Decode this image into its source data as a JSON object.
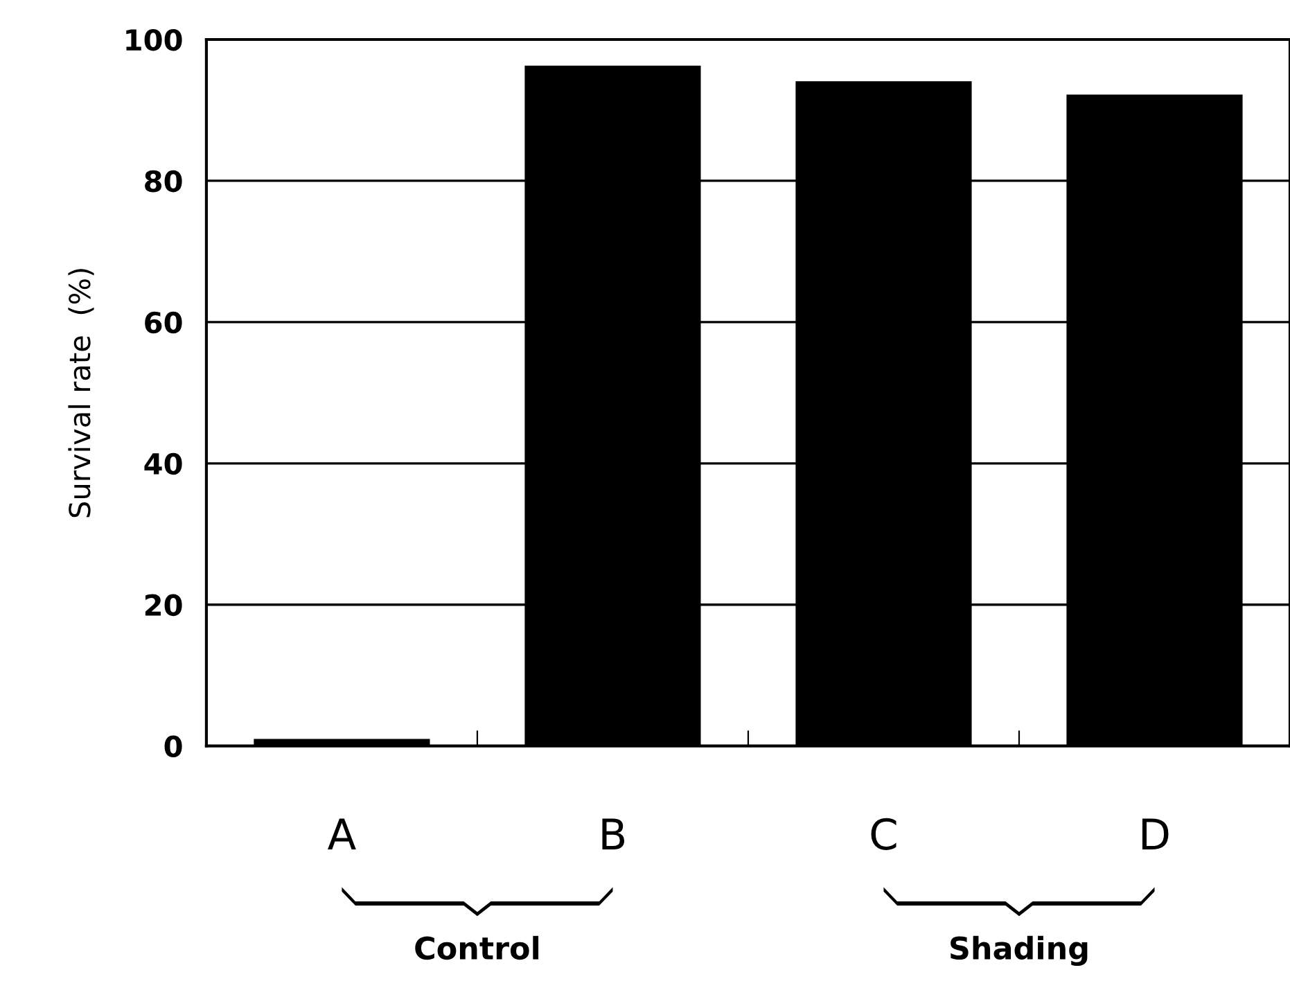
{
  "chart_data": {
    "type": "bar",
    "ylabel": "Survival rate  (%)",
    "categories": [
      "A",
      "B",
      "C",
      "D"
    ],
    "values": [
      1,
      96.3,
      94.1,
      92.2
    ],
    "color": "#000000",
    "ylim": [
      0,
      100
    ],
    "yticks": [
      0,
      20,
      40,
      60,
      80,
      100
    ],
    "grid": "y",
    "annotations": [
      "Control",
      "Shading"
    ]
  }
}
